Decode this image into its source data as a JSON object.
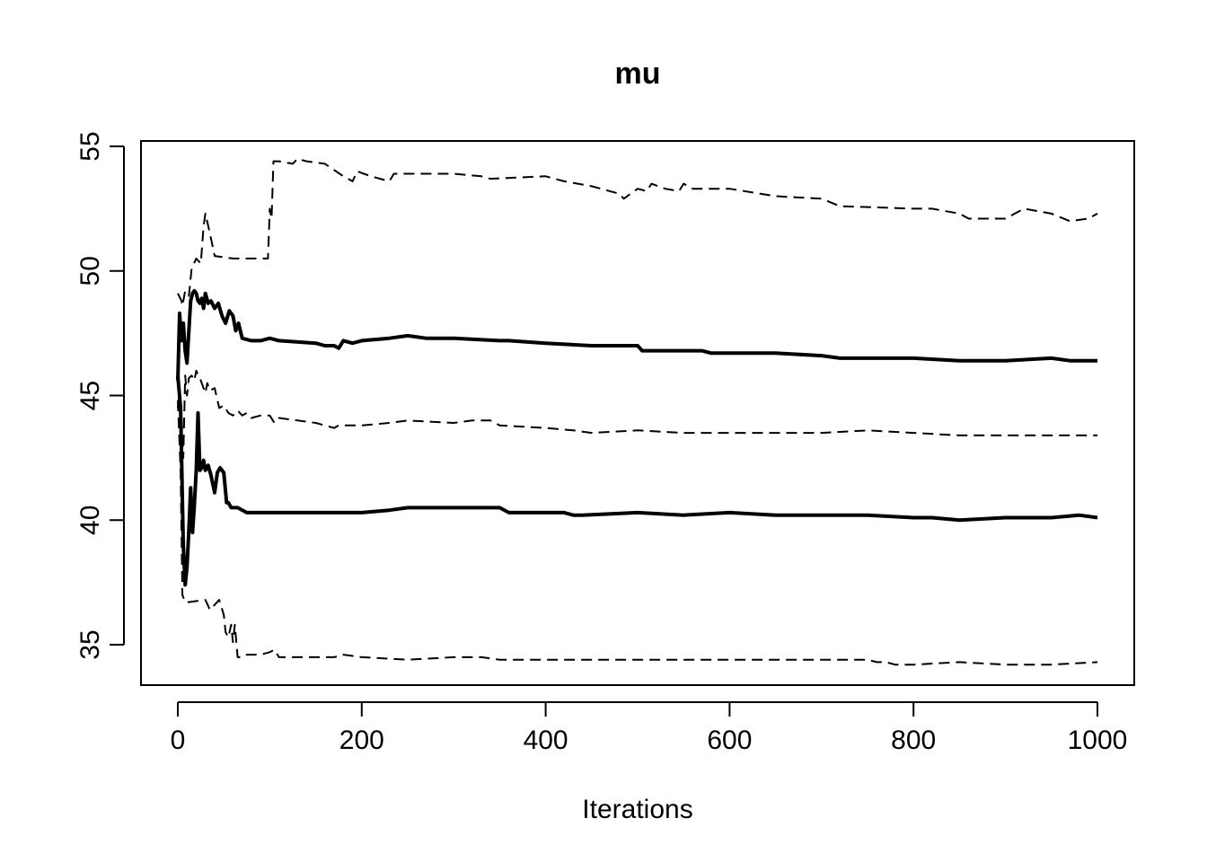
{
  "chart_data": {
    "type": "line",
    "title": "mu",
    "xlabel": "Iterations",
    "ylabel": "",
    "xlim": [
      0,
      1000
    ],
    "ylim": [
      33.5,
      55.2
    ],
    "grid": false,
    "xticks": [
      {
        "value": 0,
        "label": "0"
      },
      {
        "value": 200,
        "label": "200"
      },
      {
        "value": 400,
        "label": "400"
      },
      {
        "value": 600,
        "label": "600"
      },
      {
        "value": 800,
        "label": "800"
      },
      {
        "value": 1000,
        "label": "1000"
      }
    ],
    "yticks": [
      {
        "value": 35,
        "label": "35"
      },
      {
        "value": 40,
        "label": "40"
      },
      {
        "value": 45,
        "label": "45"
      },
      {
        "value": 50,
        "label": "50"
      },
      {
        "value": 55,
        "label": "55"
      }
    ],
    "series": [
      {
        "style": "dashed",
        "x": [
          0,
          4,
          5,
          8,
          12,
          15,
          20,
          25,
          28,
          30,
          35,
          40,
          60,
          80,
          98,
          100,
          102,
          104,
          110,
          125,
          130,
          140,
          160,
          180,
          190,
          195,
          210,
          230,
          235,
          260,
          300,
          330,
          340,
          400,
          420,
          450,
          480,
          485,
          500,
          510,
          515,
          530,
          545,
          550,
          560,
          600,
          650,
          700,
          720,
          800,
          820,
          850,
          860,
          880,
          900,
          920,
          950,
          970,
          990,
          1000
        ],
        "y": [
          49.1,
          48.8,
          48.6,
          49.2,
          49.0,
          50.1,
          50.5,
          50.3,
          51.8,
          52.3,
          51.5,
          50.6,
          50.5,
          50.5,
          50.5,
          52.5,
          52.1,
          54.4,
          54.4,
          54.3,
          54.5,
          54.4,
          54.3,
          53.8,
          53.6,
          54.0,
          53.8,
          53.6,
          53.9,
          53.9,
          53.9,
          53.8,
          53.7,
          53.8,
          53.6,
          53.4,
          53.1,
          52.9,
          53.3,
          53.2,
          53.5,
          53.3,
          53.2,
          53.5,
          53.3,
          53.3,
          53.0,
          52.9,
          52.6,
          52.5,
          52.5,
          52.3,
          52.1,
          52.1,
          52.1,
          52.5,
          52.3,
          52.0,
          52.1,
          52.3
        ]
      },
      {
        "style": "solid",
        "x": [
          0,
          2,
          4,
          6,
          8,
          10,
          12,
          14,
          16,
          18,
          20,
          22,
          24,
          26,
          28,
          30,
          33,
          36,
          40,
          44,
          48,
          52,
          56,
          60,
          63,
          66,
          70,
          80,
          90,
          100,
          110,
          150,
          160,
          170,
          175,
          180,
          190,
          200,
          230,
          250,
          270,
          300,
          350,
          360,
          400,
          450,
          500,
          505,
          570,
          580,
          600,
          650,
          700,
          720,
          800,
          850,
          900,
          950,
          970,
          1000
        ],
        "y": [
          45.6,
          48.3,
          47.2,
          47.9,
          46.8,
          46.3,
          47.6,
          48.8,
          49.1,
          49.2,
          49.1,
          48.8,
          48.7,
          48.9,
          48.5,
          49.1,
          48.7,
          48.8,
          48.5,
          48.7,
          48.2,
          47.9,
          48.4,
          48.2,
          47.6,
          47.9,
          47.3,
          47.2,
          47.2,
          47.3,
          47.2,
          47.1,
          47.0,
          47.0,
          46.9,
          47.2,
          47.1,
          47.2,
          47.3,
          47.4,
          47.3,
          47.3,
          47.2,
          47.2,
          47.1,
          47.0,
          47.0,
          46.8,
          46.8,
          46.7,
          46.7,
          46.7,
          46.6,
          46.5,
          46.5,
          46.4,
          46.4,
          46.5,
          46.4,
          46.4
        ]
      },
      {
        "style": "dashed",
        "x": [
          0,
          2,
          4,
          6,
          8,
          10,
          12,
          15,
          18,
          20,
          25,
          30,
          32,
          35,
          40,
          45,
          50,
          55,
          60,
          65,
          70,
          75,
          80,
          90,
          100,
          105,
          110,
          150,
          170,
          175,
          200,
          230,
          250,
          300,
          320,
          340,
          350,
          400,
          430,
          450,
          500,
          550,
          600,
          650,
          700,
          750,
          800,
          850,
          900,
          950,
          1000
        ],
        "y": [
          44.5,
          45.3,
          44.2,
          42.5,
          45.8,
          45.0,
          45.7,
          45.8,
          45.6,
          46.0,
          45.6,
          45.1,
          45.5,
          45.2,
          45.3,
          44.5,
          44.6,
          44.3,
          44.2,
          44.4,
          44.2,
          44.3,
          44.1,
          44.2,
          44.2,
          43.9,
          44.1,
          43.9,
          43.7,
          43.8,
          43.8,
          43.9,
          44.0,
          43.9,
          44.0,
          44.0,
          43.8,
          43.7,
          43.6,
          43.5,
          43.6,
          43.5,
          43.5,
          43.5,
          43.5,
          43.6,
          43.5,
          43.4,
          43.4,
          43.4,
          43.4
        ]
      },
      {
        "style": "solid",
        "x": [
          0,
          3,
          6,
          8,
          10,
          12,
          14,
          16,
          18,
          20,
          22,
          24,
          26,
          28,
          30,
          33,
          36,
          40,
          43,
          46,
          50,
          53,
          55,
          58,
          60,
          65,
          75,
          90,
          100,
          200,
          230,
          250,
          300,
          320,
          350,
          360,
          400,
          420,
          430,
          440,
          500,
          550,
          600,
          650,
          700,
          750,
          800,
          820,
          850,
          900,
          950,
          980,
          1000
        ],
        "y": [
          45.8,
          44.5,
          39.0,
          37.4,
          38.1,
          39.6,
          41.3,
          39.5,
          40.6,
          42.0,
          44.3,
          42.0,
          42.1,
          42.4,
          42.0,
          42.2,
          41.8,
          41.1,
          41.9,
          42.1,
          41.9,
          40.7,
          40.7,
          40.5,
          40.5,
          40.5,
          40.3,
          40.3,
          40.3,
          40.3,
          40.4,
          40.5,
          40.5,
          40.5,
          40.5,
          40.3,
          40.3,
          40.3,
          40.2,
          40.2,
          40.3,
          40.2,
          40.3,
          40.2,
          40.2,
          40.2,
          40.1,
          40.1,
          40.0,
          40.1,
          40.1,
          40.2,
          40.1
        ]
      },
      {
        "style": "dashed",
        "x": [
          0,
          3,
          5,
          8,
          10,
          30,
          35,
          40,
          45,
          50,
          52,
          55,
          58,
          60,
          62,
          65,
          70,
          75,
          80,
          90,
          100,
          105,
          110,
          130,
          150,
          170,
          180,
          200,
          250,
          300,
          330,
          350,
          400,
          450,
          500,
          550,
          600,
          650,
          700,
          750,
          760,
          770,
          780,
          800,
          850,
          900,
          950,
          1000
        ],
        "y": [
          44.8,
          42.0,
          37.0,
          36.7,
          36.7,
          36.8,
          36.4,
          36.6,
          36.8,
          36.2,
          35.5,
          35.3,
          35.8,
          35.1,
          35.8,
          34.5,
          34.5,
          34.6,
          34.6,
          34.6,
          34.7,
          34.8,
          34.5,
          34.5,
          34.5,
          34.5,
          34.6,
          34.5,
          34.4,
          34.5,
          34.5,
          34.4,
          34.4,
          34.4,
          34.4,
          34.4,
          34.4,
          34.4,
          34.4,
          34.4,
          34.3,
          34.3,
          34.2,
          34.2,
          34.3,
          34.2,
          34.2,
          34.3
        ]
      }
    ]
  }
}
